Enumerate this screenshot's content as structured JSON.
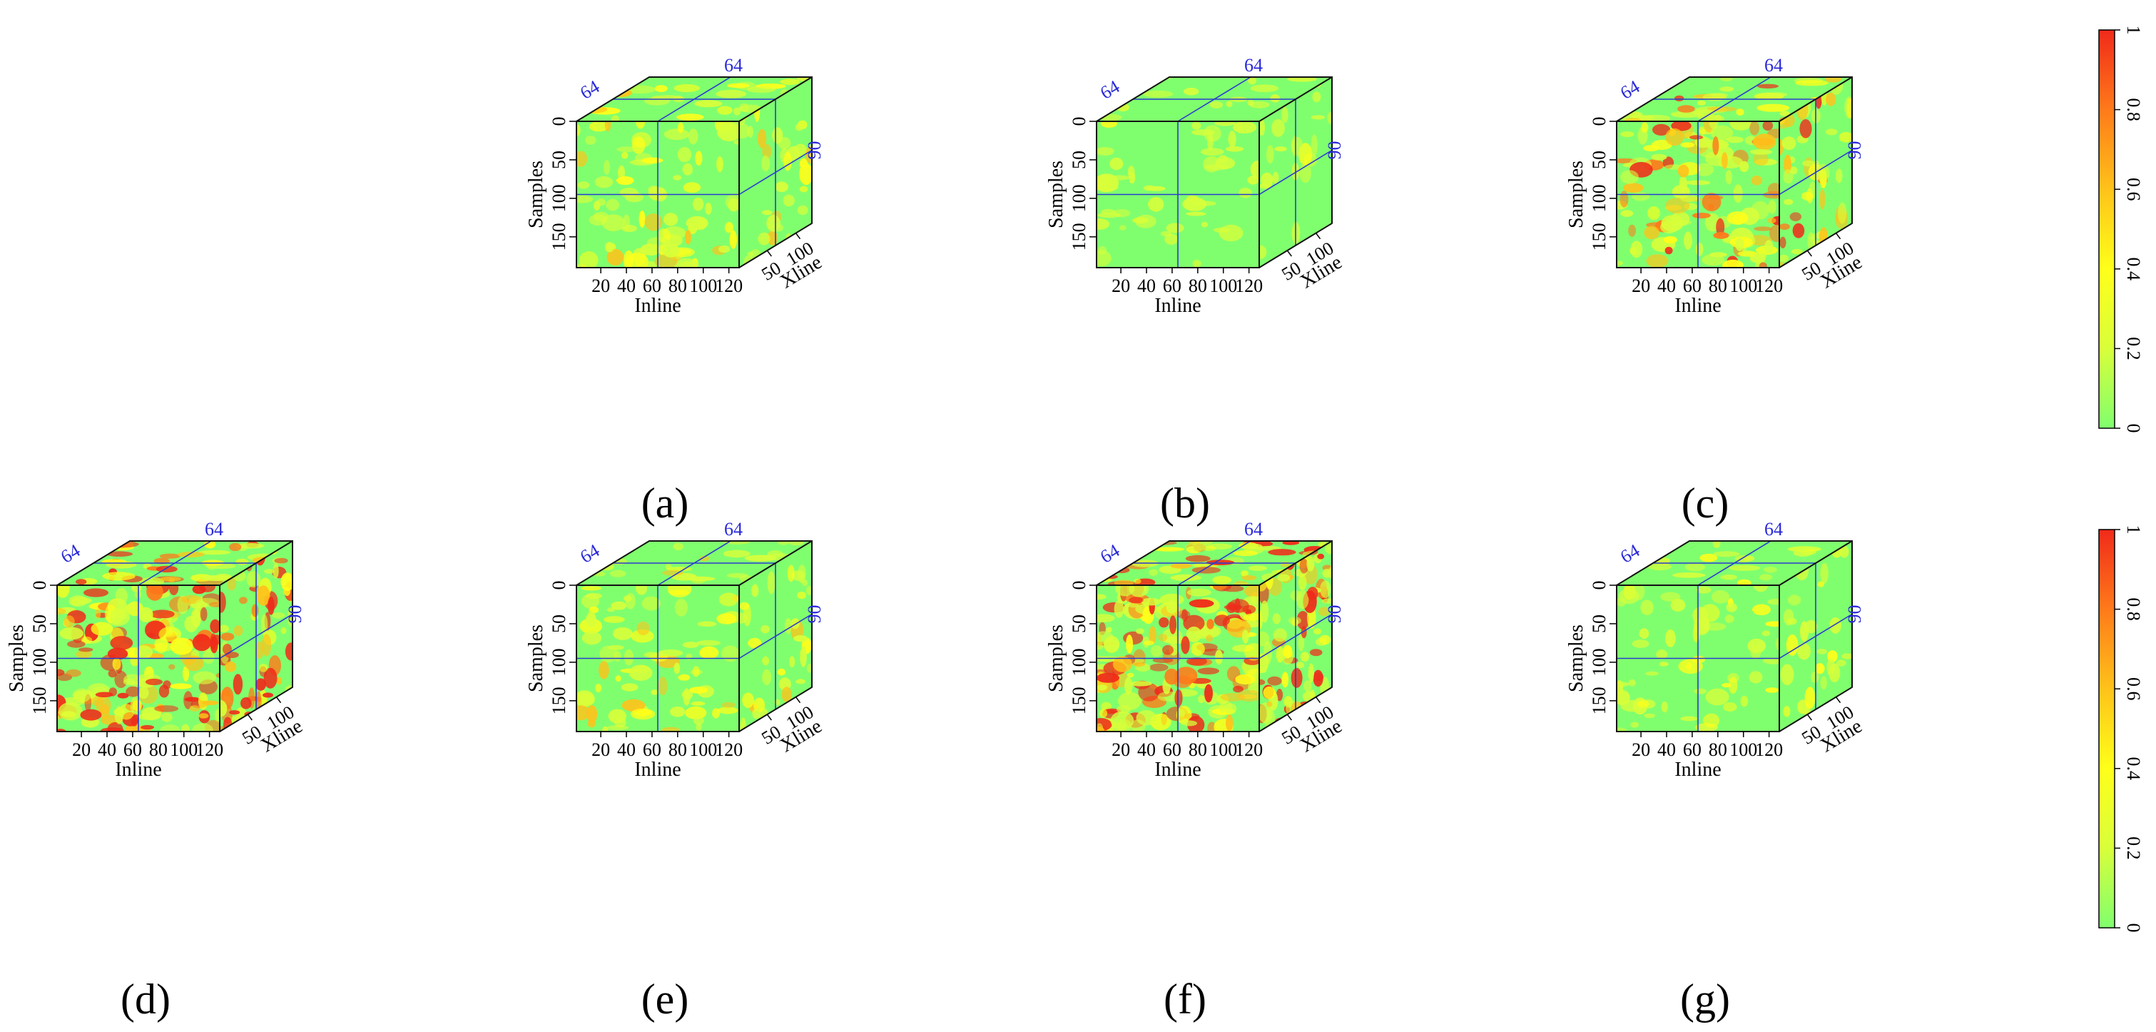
{
  "chart_data": {
    "type": "heatmap",
    "colorbar": {
      "min": 0,
      "max": 1,
      "ticks": [
        "0",
        "0.2",
        "0.4",
        "0.6",
        "0.8",
        "1"
      ]
    },
    "colorscale": [
      "#80ff6e",
      "#d8ff3a",
      "#ffff1a",
      "#ffc21a",
      "#ff7a1a",
      "#f02a1a"
    ],
    "axes": {
      "samples_label": "Samples",
      "inline_label": "Inline",
      "xline_label": "Xline",
      "samples_ticks": [
        "0",
        "50",
        "100",
        "150"
      ],
      "inline_ticks": [
        "20",
        "40",
        "60",
        "80",
        "100",
        "120"
      ],
      "xline_ticks": [
        "50",
        "100"
      ],
      "samples_range": [
        0,
        190
      ],
      "inline_range": [
        1,
        128
      ],
      "xline_range": [
        1,
        128
      ]
    },
    "slices": {
      "inline": "64",
      "xline": "64",
      "sample": "90"
    },
    "panels": [
      {
        "label": "(a)",
        "intensity": 0.35,
        "seed": 11
      },
      {
        "label": "(b)",
        "intensity": 0.12,
        "seed": 23
      },
      {
        "label": "(c)",
        "intensity": 0.6,
        "seed": 37
      },
      {
        "label": "(d)",
        "intensity": 0.9,
        "seed": 41
      },
      {
        "label": "(e)",
        "intensity": 0.3,
        "seed": 53
      },
      {
        "label": "(f)",
        "intensity": 1.0,
        "seed": 67
      },
      {
        "label": "(g)",
        "intensity": 0.2,
        "seed": 79
      }
    ]
  }
}
